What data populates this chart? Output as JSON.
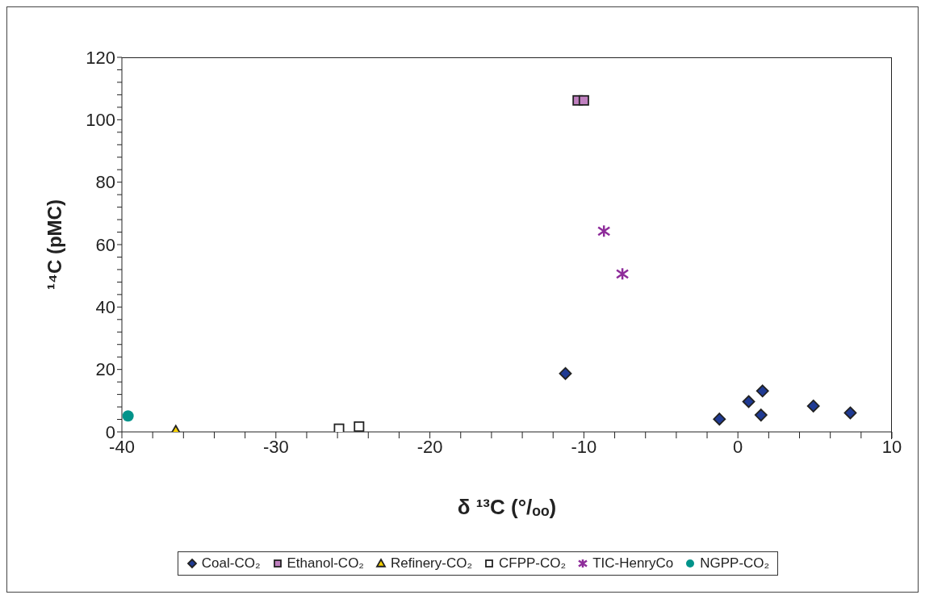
{
  "chart_data": {
    "type": "scatter",
    "xlabel": "δ ¹³C (°/ₒₒ)",
    "ylabel": "¹⁴C (pMC)",
    "xlim": [
      -40,
      10
    ],
    "ylim": [
      0,
      120
    ],
    "xticks": [
      -40,
      {
        "value": -38,
        "label": null
      },
      {
        "value": -36,
        "label": null
      },
      {
        "value": -34,
        "label": null
      },
      {
        "value": -32,
        "label": null
      },
      -30,
      {
        "value": -28,
        "label": null
      },
      {
        "value": -26,
        "label": null
      },
      {
        "value": -24,
        "label": null
      },
      {
        "value": -22,
        "label": null
      },
      -20,
      {
        "value": -18,
        "label": null
      },
      {
        "value": -16,
        "label": null
      },
      {
        "value": -14,
        "label": null
      },
      {
        "value": -12,
        "label": null
      },
      -10,
      {
        "value": -8,
        "label": null
      },
      {
        "value": -6,
        "label": null
      },
      {
        "value": -4,
        "label": null
      },
      {
        "value": -2,
        "label": null
      },
      0,
      {
        "value": 2,
        "label": null
      },
      {
        "value": 4,
        "label": null
      },
      {
        "value": 6,
        "label": null
      },
      {
        "value": 8,
        "label": null
      },
      10
    ],
    "yticks": [
      0,
      {
        "value": 4,
        "label": null
      },
      {
        "value": 8,
        "label": null
      },
      {
        "value": 12,
        "label": null
      },
      {
        "value": 16,
        "label": null
      },
      20,
      {
        "value": 24,
        "label": null
      },
      {
        "value": 28,
        "label": null
      },
      {
        "value": 32,
        "label": null
      },
      {
        "value": 36,
        "label": null
      },
      40,
      {
        "value": 44,
        "label": null
      },
      {
        "value": 48,
        "label": null
      },
      {
        "value": 52,
        "label": null
      },
      {
        "value": 56,
        "label": null
      },
      60,
      {
        "value": 64,
        "label": null
      },
      {
        "value": 68,
        "label": null
      },
      {
        "value": 72,
        "label": null
      },
      {
        "value": 76,
        "label": null
      },
      80,
      {
        "value": 84,
        "label": null
      },
      {
        "value": 88,
        "label": null
      },
      {
        "value": 92,
        "label": null
      },
      {
        "value": 96,
        "label": null
      },
      100,
      {
        "value": 104,
        "label": null
      },
      {
        "value": 108,
        "label": null
      },
      {
        "value": 112,
        "label": null
      },
      {
        "value": 116,
        "label": null
      },
      120
    ],
    "grid": false,
    "legend": "bottom",
    "series": [
      {
        "name": "Coal-CO₂",
        "color": "#1f3a93",
        "marker": "diamond",
        "x": [
          -11.2,
          -1.2,
          0.7,
          1.5,
          1.6,
          4.9,
          7.3
        ],
        "values": [
          18.7,
          4.1,
          9.7,
          5.4,
          13.1,
          8.3,
          6.1
        ]
      },
      {
        "name": "Ethanol-CO₂",
        "color": "#c080c0",
        "marker": "square",
        "x": [
          -10.4,
          -10.0
        ],
        "values": [
          106.2,
          106.2
        ]
      },
      {
        "name": "Refinery-CO₂",
        "color": "#f5d000",
        "marker": "triangle",
        "x": [
          -36.5
        ],
        "values": [
          0.2
        ]
      },
      {
        "name": "CFPP-CO₂",
        "color": "#ffffff",
        "marker": "square",
        "x": [
          -25.9,
          -24.6
        ],
        "values": [
          1.0,
          1.7
        ]
      },
      {
        "name": "TIC-HenryCo",
        "color": "#8e2c9a",
        "marker": "cross",
        "x": [
          -8.7,
          -7.5
        ],
        "values": [
          64.3,
          50.6
        ]
      },
      {
        "name": "NGPP-CO₂",
        "color": "#00938a",
        "marker": "circle",
        "x": [
          -39.6
        ],
        "values": [
          5.1
        ]
      }
    ]
  }
}
